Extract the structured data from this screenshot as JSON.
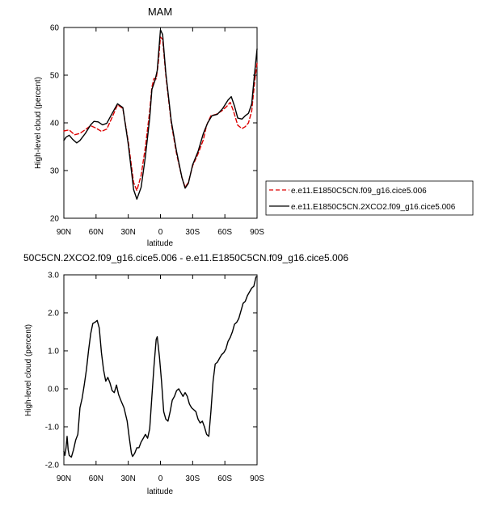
{
  "chart_data": [
    {
      "type": "line",
      "title": "MAM",
      "xlabel": "latitude",
      "ylabel": "High-level cloud (percent)",
      "xlim": [
        90,
        -90
      ],
      "ylim": [
        20,
        60
      ],
      "x_ticks": [
        90,
        60,
        30,
        0,
        -30,
        -60,
        -90
      ],
      "x_tick_labels": [
        "90N",
        "60N",
        "30N",
        "0",
        "30S",
        "60S",
        "90S"
      ],
      "y_ticks": [
        20,
        30,
        40,
        50,
        60
      ],
      "y_tick_labels": [
        "20",
        "30",
        "40",
        "50",
        "60"
      ],
      "grid": false,
      "legend": "right",
      "series": [
        {
          "name": "e.e11.E1850C5CN.f09_g16.cice5.006",
          "color": "#dd0000",
          "dash": "dashed",
          "points": [
            [
              90,
              38.3
            ],
            [
              85,
              38.5
            ],
            [
              80,
              37.5
            ],
            [
              75,
              37.8
            ],
            [
              70,
              38.6
            ],
            [
              65,
              39.4
            ],
            [
              60,
              38.9
            ],
            [
              55,
              38.2
            ],
            [
              50,
              38.7
            ],
            [
              45,
              41.2
            ],
            [
              40,
              43.8
            ],
            [
              35,
              43.0
            ],
            [
              30,
              36.0
            ],
            [
              25,
              27.5
            ],
            [
              22,
              25.8
            ],
            [
              18,
              29.0
            ],
            [
              14,
              35.0
            ],
            [
              10,
              42.5
            ],
            [
              8,
              47.5
            ],
            [
              6,
              49.3
            ],
            [
              4,
              49.2
            ],
            [
              2,
              52.5
            ],
            [
              0,
              58.0
            ],
            [
              -2,
              57.5
            ],
            [
              -5,
              50.0
            ],
            [
              -10,
              40.0
            ],
            [
              -15,
              33.5
            ],
            [
              -20,
              28.5
            ],
            [
              -23,
              26.5
            ],
            [
              -26,
              27.5
            ],
            [
              -30,
              31.0
            ],
            [
              -35,
              33.5
            ],
            [
              -40,
              36.5
            ],
            [
              -43,
              39.5
            ],
            [
              -47,
              41.5
            ],
            [
              -52,
              41.8
            ],
            [
              -57,
              42.5
            ],
            [
              -62,
              43.5
            ],
            [
              -65,
              44.3
            ],
            [
              -68,
              42.5
            ],
            [
              -72,
              39.5
            ],
            [
              -76,
              38.8
            ],
            [
              -79,
              39.2
            ],
            [
              -82,
              40.0
            ],
            [
              -85,
              42.5
            ],
            [
              -88,
              49.0
            ],
            [
              -90,
              52.5
            ]
          ]
        },
        {
          "name": "e.e11.E1850C5CN.2XCO2.f09_g16.cice5.006",
          "color": "#000000",
          "dash": "solid",
          "points": [
            [
              90,
              36.3
            ],
            [
              88,
              37.0
            ],
            [
              85,
              37.4
            ],
            [
              82,
              36.6
            ],
            [
              78,
              35.8
            ],
            [
              75,
              36.3
            ],
            [
              70,
              37.8
            ],
            [
              65,
              39.6
            ],
            [
              62,
              40.3
            ],
            [
              58,
              40.2
            ],
            [
              54,
              39.6
            ],
            [
              50,
              39.9
            ],
            [
              45,
              42.0
            ],
            [
              40,
              44.0
            ],
            [
              35,
              43.2
            ],
            [
              30,
              35.5
            ],
            [
              25,
              26.0
            ],
            [
              22,
              24.0
            ],
            [
              18,
              26.5
            ],
            [
              14,
              33.0
            ],
            [
              10,
              41.0
            ],
            [
              8,
              47.0
            ],
            [
              5,
              49.0
            ],
            [
              3,
              51.0
            ],
            [
              0,
              59.5
            ],
            [
              -2,
              58.5
            ],
            [
              -5,
              50.5
            ],
            [
              -10,
              40.5
            ],
            [
              -15,
              34.0
            ],
            [
              -20,
              28.5
            ],
            [
              -23,
              26.3
            ],
            [
              -26,
              27.3
            ],
            [
              -30,
              31.2
            ],
            [
              -35,
              34.0
            ],
            [
              -40,
              37.8
            ],
            [
              -44,
              40.0
            ],
            [
              -48,
              41.5
            ],
            [
              -53,
              41.8
            ],
            [
              -58,
              43.0
            ],
            [
              -63,
              44.8
            ],
            [
              -66,
              45.5
            ],
            [
              -69,
              43.5
            ],
            [
              -72,
              41.0
            ],
            [
              -76,
              40.8
            ],
            [
              -79,
              41.5
            ],
            [
              -82,
              42.0
            ],
            [
              -85,
              44.0
            ],
            [
              -88,
              51.0
            ],
            [
              -90,
              55.5
            ]
          ]
        }
      ]
    },
    {
      "type": "line",
      "title": "50C5CN.2XCO2.f09_g16.cice5.006 - e.e11.E1850C5CN.f09_g16.cice5.006",
      "xlabel": "latitude",
      "ylabel": "High-level cloud (percent)",
      "xlim": [
        90,
        -90
      ],
      "ylim": [
        -2.0,
        3.0
      ],
      "x_ticks": [
        90,
        60,
        30,
        0,
        -30,
        -60,
        -90
      ],
      "x_tick_labels": [
        "90N",
        "60N",
        "30N",
        "0",
        "30S",
        "60S",
        "90S"
      ],
      "y_ticks": [
        -2.0,
        -1.0,
        0.0,
        1.0,
        2.0,
        3.0
      ],
      "y_tick_labels": [
        "-2.0",
        "-1.0",
        "0.0",
        "1.0",
        "2.0",
        "3.0"
      ],
      "grid": false,
      "series": [
        {
          "color": "#000000",
          "dash": "solid",
          "points": [
            [
              90,
              -1.65
            ],
            [
              89,
              -1.75
            ],
            [
              88,
              -1.55
            ],
            [
              87,
              -1.25
            ],
            [
              86,
              -1.6
            ],
            [
              85,
              -1.75
            ],
            [
              83,
              -1.8
            ],
            [
              81,
              -1.6
            ],
            [
              79,
              -1.35
            ],
            [
              77,
              -1.2
            ],
            [
              75,
              -0.5
            ],
            [
              73,
              -0.25
            ],
            [
              71,
              0.1
            ],
            [
              69,
              0.5
            ],
            [
              67,
              1.0
            ],
            [
              65,
              1.45
            ],
            [
              63,
              1.72
            ],
            [
              61,
              1.75
            ],
            [
              59,
              1.8
            ],
            [
              57,
              1.6
            ],
            [
              55,
              0.95
            ],
            [
              53,
              0.5
            ],
            [
              51,
              0.2
            ],
            [
              49,
              0.3
            ],
            [
              47,
              0.15
            ],
            [
              45,
              -0.05
            ],
            [
              43,
              -0.1
            ],
            [
              41,
              0.1
            ],
            [
              39,
              -0.15
            ],
            [
              37,
              -0.3
            ],
            [
              34,
              -0.5
            ],
            [
              31,
              -0.85
            ],
            [
              29,
              -1.3
            ],
            [
              27,
              -1.7
            ],
            [
              26,
              -1.78
            ],
            [
              24,
              -1.7
            ],
            [
              22,
              -1.55
            ],
            [
              20,
              -1.55
            ],
            [
              18,
              -1.4
            ],
            [
              16,
              -1.3
            ],
            [
              14,
              -1.2
            ],
            [
              12,
              -1.3
            ],
            [
              10,
              -1.05
            ],
            [
              8,
              -0.2
            ],
            [
              6,
              0.6
            ],
            [
              4,
              1.3
            ],
            [
              3,
              1.37
            ],
            [
              1,
              0.85
            ],
            [
              -1,
              0.2
            ],
            [
              -3,
              -0.6
            ],
            [
              -5,
              -0.8
            ],
            [
              -7,
              -0.85
            ],
            [
              -9,
              -0.6
            ],
            [
              -11,
              -0.3
            ],
            [
              -13,
              -0.2
            ],
            [
              -15,
              -0.05
            ],
            [
              -17,
              0.0
            ],
            [
              -19,
              -0.1
            ],
            [
              -21,
              -0.2
            ],
            [
              -23,
              -0.1
            ],
            [
              -25,
              -0.2
            ],
            [
              -27,
              -0.4
            ],
            [
              -29,
              -0.5
            ],
            [
              -31,
              -0.55
            ],
            [
              -33,
              -0.6
            ],
            [
              -35,
              -0.8
            ],
            [
              -37,
              -0.9
            ],
            [
              -39,
              -0.85
            ],
            [
              -41,
              -1.0
            ],
            [
              -43,
              -1.2
            ],
            [
              -45,
              -1.25
            ],
            [
              -47,
              -0.6
            ],
            [
              -49,
              0.2
            ],
            [
              -51,
              0.65
            ],
            [
              -53,
              0.7
            ],
            [
              -55,
              0.8
            ],
            [
              -57,
              0.9
            ],
            [
              -59,
              0.95
            ],
            [
              -61,
              1.05
            ],
            [
              -63,
              1.25
            ],
            [
              -65,
              1.35
            ],
            [
              -67,
              1.5
            ],
            [
              -69,
              1.7
            ],
            [
              -71,
              1.75
            ],
            [
              -73,
              1.85
            ],
            [
              -75,
              2.05
            ],
            [
              -77,
              2.25
            ],
            [
              -79,
              2.3
            ],
            [
              -81,
              2.45
            ],
            [
              -83,
              2.55
            ],
            [
              -85,
              2.65
            ],
            [
              -87,
              2.7
            ],
            [
              -89,
              2.95
            ],
            [
              -90,
              2.95
            ]
          ]
        }
      ]
    }
  ]
}
